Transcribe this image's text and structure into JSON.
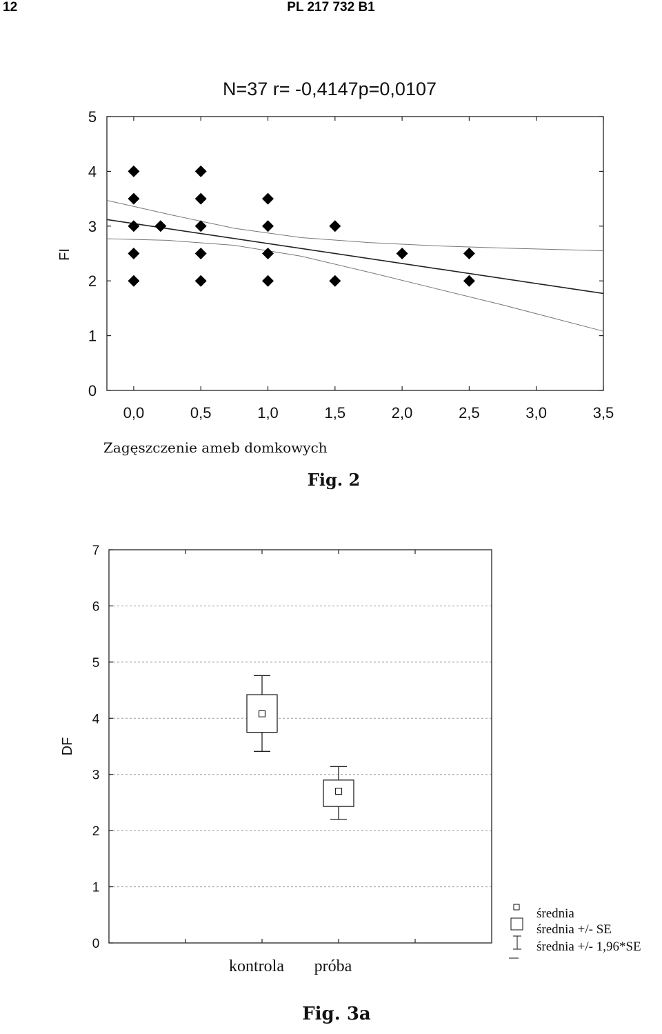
{
  "header": {
    "page_number": "12",
    "patent_number": "PL 217 732 B1"
  },
  "chart_data": [
    {
      "type": "scatter",
      "title": "N=37 r= -0,4147p=0,0107",
      "xlabel": "Zagęszczenie ameb domkowych",
      "ylabel": "FI",
      "caption": "Fig. 2",
      "xlim": [
        -0.2,
        3.5
      ],
      "ylim": [
        0,
        5
      ],
      "xticks": [
        0.0,
        0.5,
        1.0,
        1.5,
        2.0,
        2.5,
        3.0,
        3.5
      ],
      "xtick_labels": [
        "0,0",
        "0,5",
        "1,0",
        "1,5",
        "2,0",
        "2,5",
        "3,0",
        "3,5"
      ],
      "yticks": [
        0,
        1,
        2,
        3,
        4,
        5
      ],
      "ytick_labels": [
        "0",
        "1",
        "2",
        "3",
        "4",
        "5"
      ],
      "points": [
        {
          "x": 0.0,
          "y": 4.0
        },
        {
          "x": 0.0,
          "y": 3.5
        },
        {
          "x": 0.0,
          "y": 3.0
        },
        {
          "x": 0.0,
          "y": 2.5
        },
        {
          "x": 0.0,
          "y": 2.0
        },
        {
          "x": 0.2,
          "y": 3.0
        },
        {
          "x": 0.5,
          "y": 4.0
        },
        {
          "x": 0.5,
          "y": 3.5
        },
        {
          "x": 0.5,
          "y": 3.0
        },
        {
          "x": 0.5,
          "y": 2.5
        },
        {
          "x": 0.5,
          "y": 2.0
        },
        {
          "x": 1.0,
          "y": 3.5
        },
        {
          "x": 1.0,
          "y": 3.0
        },
        {
          "x": 1.0,
          "y": 2.5
        },
        {
          "x": 1.0,
          "y": 2.0
        },
        {
          "x": 1.5,
          "y": 3.0
        },
        {
          "x": 1.5,
          "y": 2.0
        },
        {
          "x": 2.0,
          "y": 2.5
        },
        {
          "x": 2.5,
          "y": 2.5
        },
        {
          "x": 2.5,
          "y": 2.0
        }
      ],
      "regression_line": {
        "x": [
          -0.2,
          3.5
        ],
        "y": [
          3.12,
          1.77
        ]
      },
      "confidence_band": {
        "x": [
          -0.2,
          0.25,
          0.75,
          1.25,
          1.75,
          2.25,
          2.75,
          3.5
        ],
        "upper": [
          3.47,
          3.22,
          2.96,
          2.79,
          2.7,
          2.64,
          2.6,
          2.55
        ],
        "lower": [
          2.77,
          2.74,
          2.65,
          2.45,
          2.16,
          1.86,
          1.56,
          1.08
        ]
      },
      "grid": false
    },
    {
      "type": "box",
      "ylabel": "DF",
      "caption": "Fig. 3a",
      "categories": [
        "kontrola",
        "próba"
      ],
      "ylim": [
        0,
        7
      ],
      "yticks": [
        0,
        1,
        2,
        3,
        4,
        5,
        6,
        7
      ],
      "ytick_labels": [
        "0",
        "1",
        "2",
        "3",
        "4",
        "5",
        "6",
        "7"
      ],
      "grid": true,
      "boxes": [
        {
          "category": "kontrola",
          "mean": 4.08,
          "se_low": 3.75,
          "se_high": 4.42,
          "ci_low": 3.41,
          "ci_high": 4.76
        },
        {
          "category": "próba",
          "mean": 2.7,
          "se_low": 2.43,
          "se_high": 2.9,
          "ci_low": 2.2,
          "ci_high": 3.14
        }
      ],
      "legend": {
        "position": "right-bottom",
        "entries": [
          "średnia",
          "średnia +/- SE",
          "średnia +/- 1,96*SE"
        ]
      }
    }
  ]
}
